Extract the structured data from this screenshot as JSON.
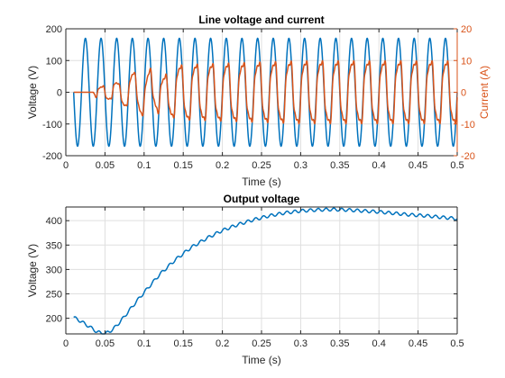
{
  "chart_data": [
    {
      "type": "line",
      "title": "Line voltage and current",
      "xlabel": "Time (s)",
      "ylabel": "Voltage (V)",
      "y2label": "Current (A)",
      "xlim": [
        0,
        0.5
      ],
      "ylim": [
        -200,
        200
      ],
      "y2lim": [
        -20,
        20
      ],
      "grid": true,
      "xticks": [
        0,
        0.05,
        0.1,
        0.15,
        0.2,
        0.25,
        0.3,
        0.35,
        0.4,
        0.45,
        0.5
      ],
      "xtick_labels": [
        "0",
        "0.05",
        "0.1",
        "0.15",
        "0.2",
        "0.25",
        "0.3",
        "0.35",
        "0.4",
        "0.45",
        "0.5"
      ],
      "yticks": [
        -200,
        -100,
        0,
        100,
        200
      ],
      "ytick_labels": [
        "-200",
        "-100",
        "0",
        "100",
        "200"
      ],
      "y2ticks": [
        -20,
        -10,
        0,
        10,
        20
      ],
      "y2tick_labels": [
        "-20",
        "-10",
        "0",
        "10",
        "20"
      ],
      "colors": {
        "voltage": "#0072bd",
        "current": "#d95319"
      },
      "series": [
        {
          "axis": "left",
          "description": "Line voltage, sinusoid",
          "amplitude": 170,
          "frequency_hz": 50,
          "x_range": [
            0.01,
            0.5
          ]
        },
        {
          "axis": "right",
          "description": "Line current, distorted, rising envelope",
          "frequency_hz": 50,
          "x_range": [
            0.01,
            0.5
          ],
          "zero_until": 0.035,
          "envelope": [
            [
              0.035,
              0
            ],
            [
              0.04,
              3.5
            ],
            [
              0.07,
              4
            ],
            [
              0.09,
              6.5
            ],
            [
              0.12,
              9
            ],
            [
              0.15,
              11
            ],
            [
              0.2,
              11.5
            ],
            [
              0.25,
              12
            ],
            [
              0.3,
              12.5
            ],
            [
              0.5,
              12.5
            ]
          ]
        }
      ]
    },
    {
      "type": "line",
      "title": "Output voltage",
      "xlabel": "Time (s)",
      "ylabel": "Voltage (V)",
      "xlim": [
        0,
        0.5
      ],
      "ylim": [
        168,
        428
      ],
      "grid": true,
      "xticks": [
        0,
        0.05,
        0.1,
        0.15,
        0.2,
        0.25,
        0.3,
        0.35,
        0.4,
        0.45,
        0.5
      ],
      "xtick_labels": [
        "0",
        "0.05",
        "0.1",
        "0.15",
        "0.2",
        "0.25",
        "0.3",
        "0.35",
        "0.4",
        "0.45",
        "0.5"
      ],
      "yticks": [
        200,
        250,
        300,
        350,
        400
      ],
      "ytick_labels": [
        "200",
        "250",
        "300",
        "350",
        "400"
      ],
      "colors": {
        "voltage": "#0072bd"
      },
      "series": [
        {
          "description": "DC output voltage with ripple",
          "ripple_amplitude": 3,
          "ripple_frequency_hz": 100,
          "points": [
            [
              0.01,
              202
            ],
            [
              0.02,
              193
            ],
            [
              0.03,
              183
            ],
            [
              0.04,
              172
            ],
            [
              0.05,
              168
            ],
            [
              0.06,
              177
            ],
            [
              0.07,
              194
            ],
            [
              0.08,
              214
            ],
            [
              0.09,
              234
            ],
            [
              0.1,
              253
            ],
            [
              0.12,
              290
            ],
            [
              0.14,
              320
            ],
            [
              0.16,
              345
            ],
            [
              0.18,
              364
            ],
            [
              0.2,
              380
            ],
            [
              0.22,
              392
            ],
            [
              0.24,
              402
            ],
            [
              0.26,
              410
            ],
            [
              0.28,
              416
            ],
            [
              0.3,
              420
            ],
            [
              0.32,
              422
            ],
            [
              0.34,
              423
            ],
            [
              0.36,
              422
            ],
            [
              0.38,
              420
            ],
            [
              0.4,
              418
            ],
            [
              0.42,
              415
            ],
            [
              0.44,
              412
            ],
            [
              0.46,
              410
            ],
            [
              0.48,
              407
            ],
            [
              0.5,
              404
            ]
          ]
        }
      ]
    }
  ]
}
